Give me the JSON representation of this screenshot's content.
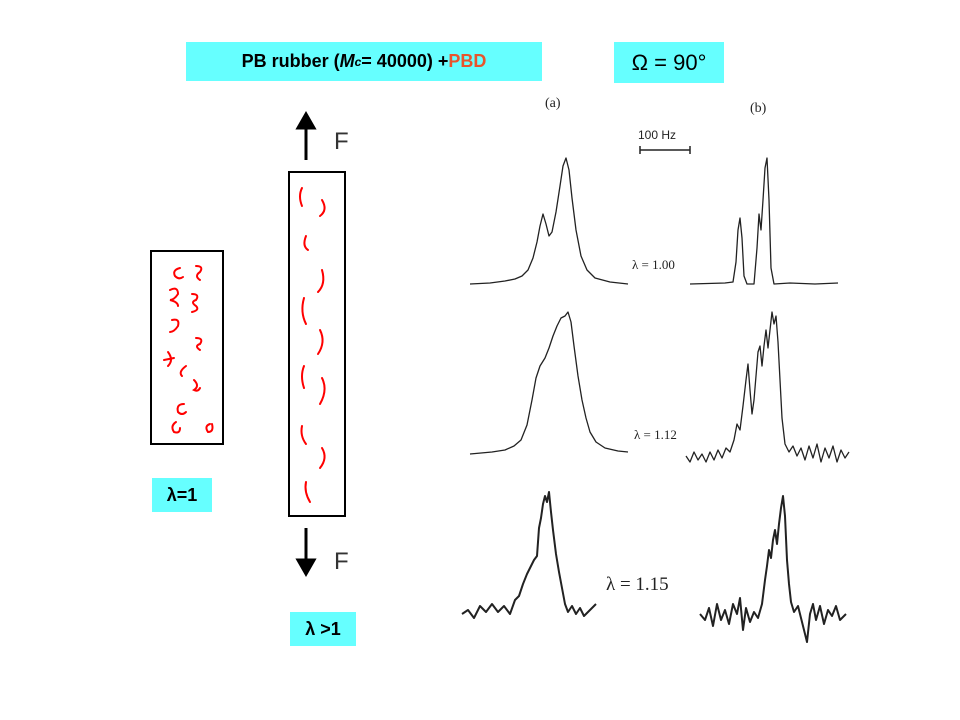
{
  "title": {
    "prefix": "PB rubber (",
    "m_symbol": "M",
    "m_subscript": "c",
    "middle": "= 40000) + ",
    "pbd": "PBD",
    "pbd_color": "#e8542c"
  },
  "angle": "Ω = 90°",
  "panel_labels": {
    "a": "(a)",
    "b": "(b)"
  },
  "scale_bar": "100 Hz",
  "spectra_labels": [
    "λ = 1.00",
    "λ = 1.12",
    "λ = 1.15"
  ],
  "force_label": "F",
  "lambda_unstretched": "λ=1",
  "lambda_stretched": "λ >1",
  "box_color": "#66ffff",
  "chain_color": "#ff0000"
}
